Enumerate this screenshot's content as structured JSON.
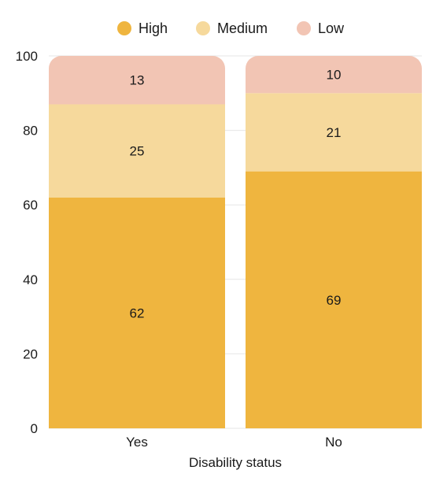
{
  "chart_data": {
    "type": "bar",
    "stacked": true,
    "categories": [
      "Yes",
      "No"
    ],
    "series": [
      {
        "name": "High",
        "values": [
          62,
          69
        ],
        "color": "#EFB53F"
      },
      {
        "name": "Medium",
        "values": [
          25,
          21
        ],
        "color": "#F6D99C"
      },
      {
        "name": "Low",
        "values": [
          13,
          10
        ],
        "color": "#F2C5B4"
      }
    ],
    "xlabel": "Disability status",
    "ylabel": "",
    "ylim": [
      0,
      100
    ],
    "yticks": [
      0,
      20,
      40,
      60,
      80,
      100
    ],
    "grid": true,
    "legend": "top-center"
  }
}
